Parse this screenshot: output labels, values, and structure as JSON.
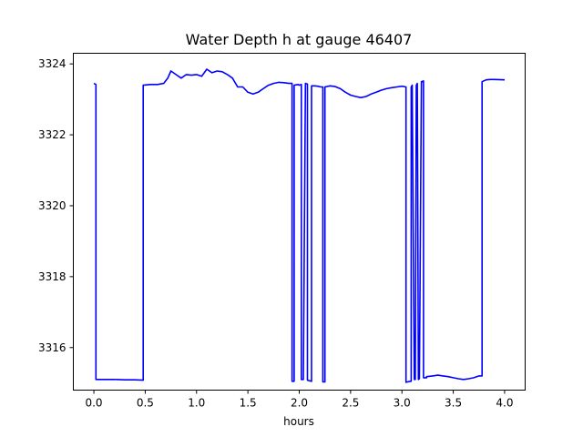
{
  "chart_data": {
    "type": "line",
    "title": "Water Depth h at gauge 46407",
    "xlabel": "hours",
    "ylabel": "",
    "xlim": [
      -0.2,
      4.2
    ],
    "ylim": [
      3314.8,
      3324.3
    ],
    "xticks": [
      0.0,
      0.5,
      1.0,
      1.5,
      2.0,
      2.5,
      3.0,
      3.5,
      4.0
    ],
    "xtick_labels": [
      "0.0",
      "0.5",
      "1.0",
      "1.5",
      "2.0",
      "2.5",
      "3.0",
      "3.5",
      "4.0"
    ],
    "yticks": [
      3316,
      3318,
      3320,
      3322,
      3324
    ],
    "ytick_labels": [
      "3316",
      "3318",
      "3320",
      "3322",
      "3324"
    ],
    "grid": false,
    "series": [
      {
        "color": "#0000ff",
        "x": [
          0.0,
          0.02,
          0.02,
          0.1,
          0.2,
          0.3,
          0.4,
          0.48,
          0.48,
          0.55,
          0.62,
          0.68,
          0.72,
          0.75,
          0.8,
          0.85,
          0.9,
          0.95,
          1.0,
          1.05,
          1.1,
          1.15,
          1.2,
          1.25,
          1.3,
          1.35,
          1.4,
          1.45,
          1.5,
          1.55,
          1.6,
          1.65,
          1.7,
          1.75,
          1.8,
          1.85,
          1.9,
          1.93,
          1.93,
          1.95,
          1.95,
          1.99,
          2.0,
          2.02,
          2.02,
          2.04,
          2.06,
          2.08,
          2.08,
          2.12,
          2.12,
          2.15,
          2.18,
          2.21,
          2.23,
          2.23,
          2.25,
          2.25,
          2.3,
          2.35,
          2.4,
          2.45,
          2.5,
          2.55,
          2.6,
          2.65,
          2.7,
          2.75,
          2.8,
          2.85,
          2.9,
          2.95,
          3.0,
          3.04,
          3.04,
          3.08,
          3.09,
          3.09,
          3.1,
          3.12,
          3.13,
          3.14,
          3.15,
          3.16,
          3.17,
          3.19,
          3.19,
          3.21,
          3.21,
          3.24,
          3.24,
          3.3,
          3.35,
          3.4,
          3.45,
          3.5,
          3.55,
          3.6,
          3.65,
          3.7,
          3.75,
          3.78,
          3.78,
          3.82,
          3.86,
          3.9,
          4.0
        ],
        "y": [
          3323.45,
          3323.42,
          3315.1,
          3315.1,
          3315.1,
          3315.09,
          3315.09,
          3315.08,
          3323.4,
          3323.42,
          3323.42,
          3323.45,
          3323.6,
          3323.8,
          3323.7,
          3323.6,
          3323.7,
          3323.68,
          3323.7,
          3323.65,
          3323.85,
          3323.75,
          3323.8,
          3323.78,
          3323.7,
          3323.6,
          3323.35,
          3323.35,
          3323.2,
          3323.15,
          3323.2,
          3323.3,
          3323.4,
          3323.45,
          3323.48,
          3323.47,
          3323.45,
          3323.45,
          3315.05,
          3315.05,
          3323.4,
          3323.42,
          3323.4,
          3323.42,
          3315.1,
          3315.1,
          3323.45,
          3323.43,
          3315.08,
          3315.05,
          3323.38,
          3323.38,
          3323.37,
          3323.35,
          3323.35,
          3315.03,
          3315.03,
          3323.35,
          3323.38,
          3323.36,
          3323.3,
          3323.2,
          3323.12,
          3323.08,
          3323.05,
          3323.08,
          3323.15,
          3323.2,
          3323.26,
          3323.3,
          3323.33,
          3323.35,
          3323.37,
          3323.35,
          3315.02,
          3315.05,
          3315.05,
          3323.35,
          3323.4,
          3315.1,
          3315.1,
          3323.4,
          3323.45,
          3315.1,
          3315.12,
          3323.45,
          3323.5,
          3323.52,
          3315.15,
          3315.15,
          3315.18,
          3315.2,
          3315.22,
          3315.2,
          3315.18,
          3315.15,
          3315.12,
          3315.1,
          3315.12,
          3315.15,
          3315.2,
          3315.2,
          3323.5,
          3323.55,
          3323.56,
          3323.56,
          3323.55
        ]
      }
    ]
  }
}
